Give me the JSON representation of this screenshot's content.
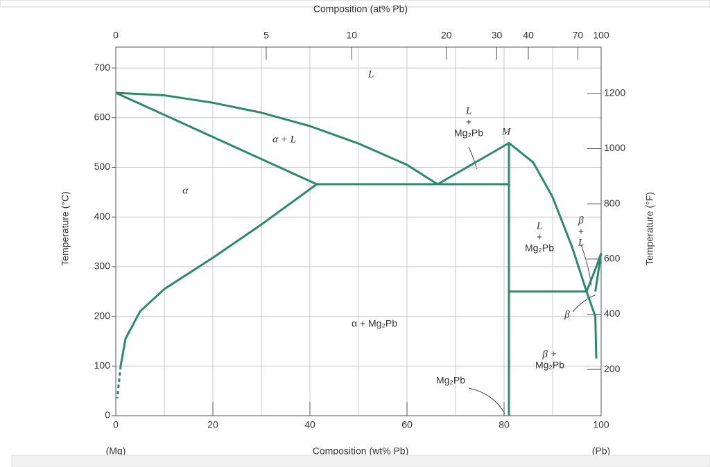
{
  "chart_data": {
    "type": "phase-diagram",
    "x_label": "Composition (wt% Pb)",
    "x2_label": "Composition (at% Pb)",
    "y_label": "Temperature (°C)",
    "y2_label": "Temperature (°F)",
    "x_end_labels": [
      "(Mg)",
      "(Pb)"
    ],
    "xlim": [
      0,
      100
    ],
    "xticks": [
      0,
      20,
      40,
      60,
      80,
      100
    ],
    "xgrid": [
      10,
      20,
      30,
      40,
      50,
      60,
      70,
      80,
      90
    ],
    "x2ticks": [
      0,
      {
        "value": 31,
        "label": "5"
      },
      {
        "value": 48.6,
        "label": "10"
      },
      {
        "value": 68.1,
        "label": "20"
      },
      {
        "value": 78.5,
        "label": "30"
      },
      {
        "value": 85,
        "label": "40"
      },
      {
        "value": 95.2,
        "label": "70"
      },
      100
    ],
    "ylim": [
      0,
      742
    ],
    "yticks": [
      0,
      100,
      200,
      300,
      400,
      500,
      600,
      700
    ],
    "y2lim": [
      32,
      1368
    ],
    "y2ticks": [
      200,
      400,
      600,
      800,
      1000,
      1200
    ],
    "grid": true,
    "color": "#2b8a6b",
    "series": [
      {
        "x": [
          0,
          10,
          20,
          30,
          40,
          50,
          60,
          66.3
        ],
        "values": [
          650,
          645,
          630,
          610,
          583,
          548,
          505,
          466
        ]
      },
      {
        "x": [
          0,
          41.4
        ],
        "values": [
          650,
          466
        ]
      },
      {
        "x": [
          41.4,
          30,
          20,
          10,
          5,
          2,
          1
        ],
        "values": [
          466,
          385,
          318,
          255,
          210,
          155,
          100
        ]
      },
      {
        "x": [
          1,
          0.3
        ],
        "values": [
          100,
          35
        ]
      },
      {
        "x": [
          41.4,
          81
        ],
        "values": [
          466,
          466
        ]
      },
      {
        "x": [
          66.3,
          75,
          81,
          86,
          90,
          94,
          97
        ],
        "values": [
          466,
          515,
          549,
          510,
          440,
          340,
          250
        ]
      },
      {
        "x": [
          81,
          81
        ],
        "values": [
          549,
          0
        ]
      },
      {
        "x": [
          81,
          97
        ],
        "values": [
          250,
          250
        ]
      },
      {
        "x": [
          97,
          99,
          100
        ],
        "values": [
          250,
          300,
          327
        ]
      },
      {
        "x": [
          97,
          98.8,
          99
        ],
        "values": [
          250,
          200,
          115
        ]
      },
      {
        "x": [
          100,
          98.8
        ],
        "values": [
          327,
          250
        ]
      }
    ],
    "annotations": [
      [
        "L"
      ],
      [
        "α + L"
      ],
      [
        "α"
      ],
      [
        "L",
        "+",
        "Mg₂Pb"
      ],
      [
        "M"
      ],
      [
        "L",
        "+",
        "Mg₂Pb"
      ],
      [
        "β",
        "+",
        "L"
      ],
      [
        "β"
      ],
      [
        "α + Mg₂Pb"
      ],
      [
        "β +",
        "Mg₂Pb"
      ],
      [
        "Mg₂Pb"
      ]
    ]
  }
}
